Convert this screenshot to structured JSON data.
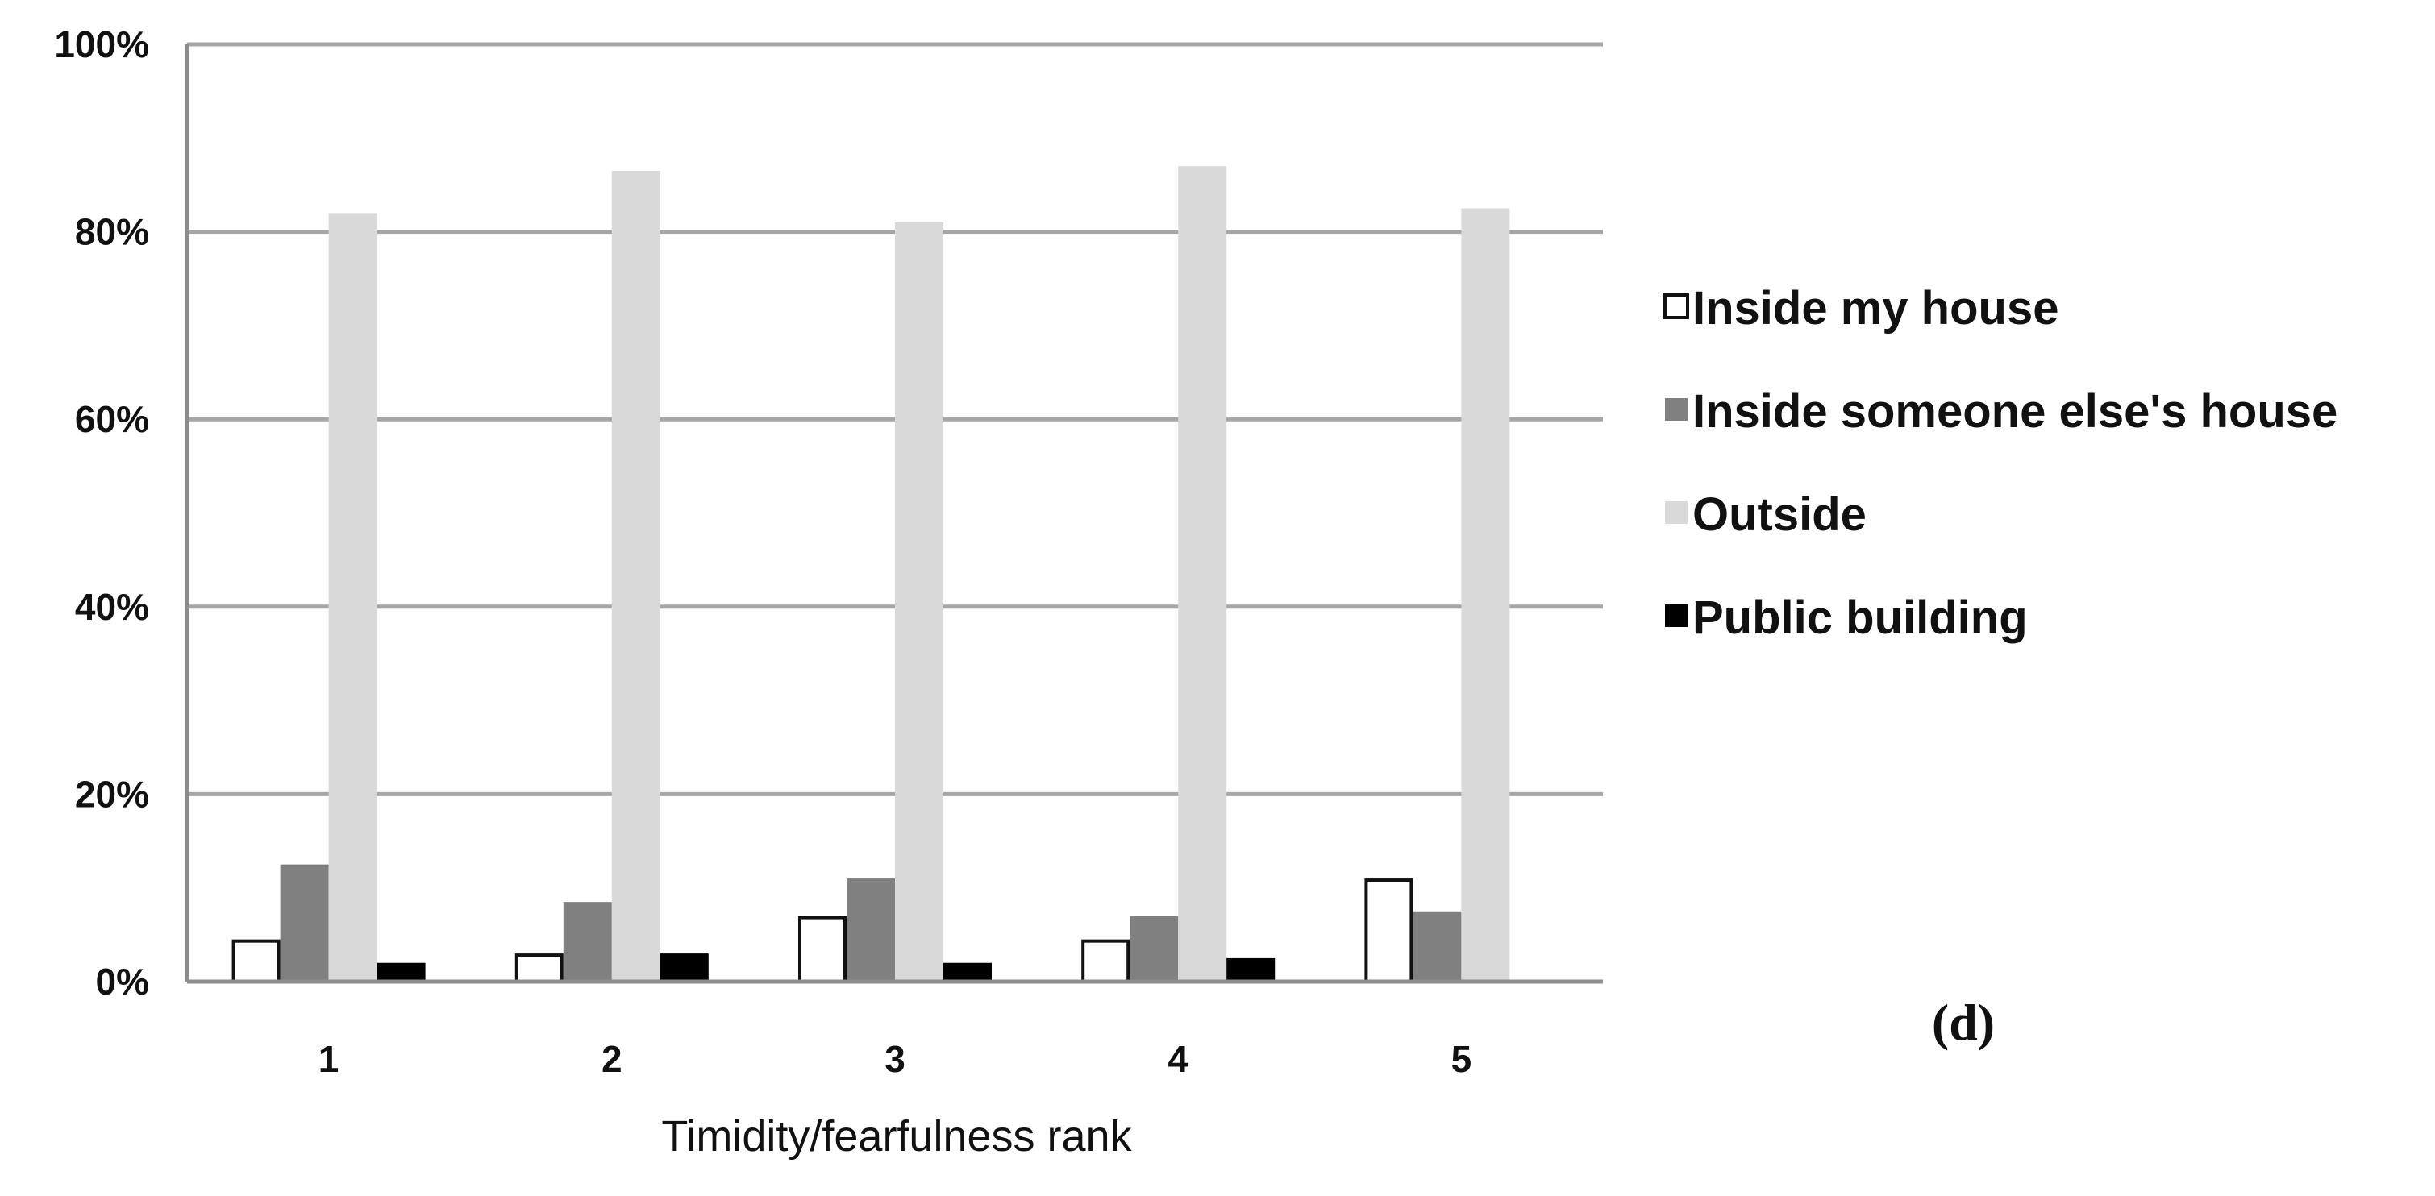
{
  "chart_data": {
    "type": "bar",
    "categories": [
      "1",
      "2",
      "3",
      "4",
      "5"
    ],
    "series": [
      {
        "name": "Inside my house",
        "values": [
          4.5,
          3,
          7,
          4.5,
          11
        ],
        "color": "#ffffff",
        "stroke": "#111111"
      },
      {
        "name": "Inside someone else's house",
        "values": [
          12.5,
          8.5,
          11,
          7,
          7.5
        ],
        "color": "#808080",
        "stroke": "#808080"
      },
      {
        "name": "Outside",
        "values": [
          82,
          86.5,
          81,
          87,
          82.5
        ],
        "color": "#d9d9d9",
        "stroke": "#d9d9d9"
      },
      {
        "name": "Public building",
        "values": [
          2,
          3,
          2,
          2.5,
          0
        ],
        "color": "#000000",
        "stroke": "#000000"
      }
    ],
    "title": "",
    "xlabel": "Timidity/fearfulness rank",
    "ylabel": "",
    "ylim": [
      0,
      100
    ],
    "yticks": [
      "0%",
      "20%",
      "40%",
      "60%",
      "80%",
      "100%"
    ],
    "grid": true,
    "legend": "right",
    "panel_label": "(d)"
  }
}
